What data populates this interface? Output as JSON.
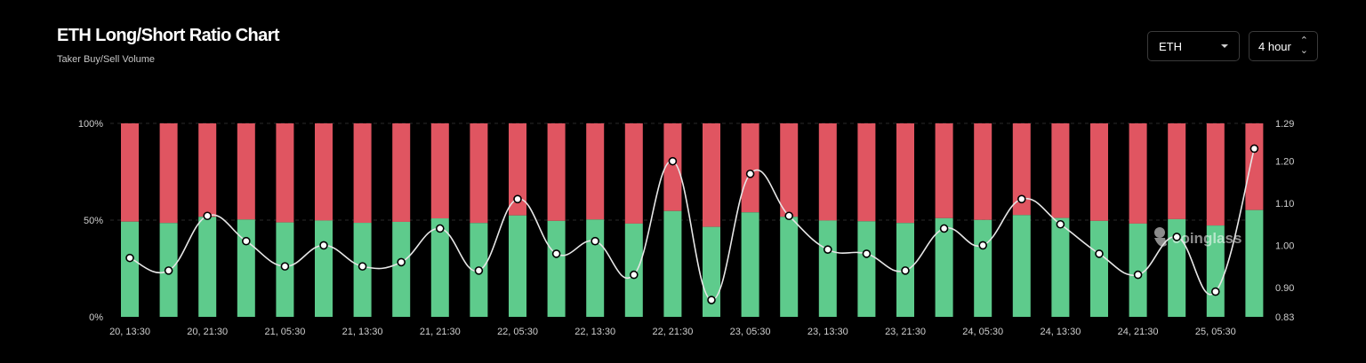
{
  "header": {
    "title": "ETH Long/Short Ratio Chart",
    "subtitle": "Taker Buy/Sell Volume"
  },
  "controls": {
    "coin_label": "ETH",
    "interval_label": "4 hour",
    "caret_icon": "chevron-down-icon",
    "updown_icon": "sort-updown-icon"
  },
  "watermark": "coinglass",
  "colors": {
    "long": "#5ecb8c",
    "short": "#e05561",
    "line": "#e6e6e6",
    "background": "#000000"
  },
  "chart_data": {
    "type": "bar",
    "stacked": true,
    "percent_axis": {
      "ticks": [
        "0%",
        "50%",
        "100%"
      ],
      "range": [
        0,
        100
      ]
    },
    "ratio_axis": {
      "ticks": [
        "0.83",
        "0.90",
        "1.00",
        "1.10",
        "1.20",
        "1.29"
      ],
      "range": [
        0.83,
        1.29
      ]
    },
    "x_tick_labels": [
      "20, 13:30",
      "20, 21:30",
      "21, 05:30",
      "21, 13:30",
      "21, 21:30",
      "22, 05:30",
      "22, 13:30",
      "22, 21:30",
      "23, 05:30",
      "23, 13:30",
      "23, 21:30",
      "24, 05:30",
      "24, 13:30",
      "24, 21:30",
      "25, 05:30"
    ],
    "series": [
      {
        "name": "Long",
        "values": [
          49.2,
          48.5,
          51.7,
          50.3,
          48.8,
          49.8,
          48.6,
          49.1,
          50.9,
          48.5,
          52.4,
          49.6,
          50.3,
          48.2,
          54.7,
          46.5,
          54.0,
          51.7,
          49.8,
          49.4,
          48.5,
          51.0,
          50.1,
          52.6,
          51.1,
          49.6,
          48.2,
          50.5,
          47.2,
          55.2
        ]
      },
      {
        "name": "Short",
        "values": [
          50.8,
          51.5,
          48.3,
          49.7,
          51.2,
          50.2,
          51.4,
          50.9,
          49.1,
          51.5,
          47.6,
          50.4,
          49.7,
          51.8,
          45.3,
          53.5,
          46.0,
          48.3,
          50.2,
          50.6,
          51.5,
          49.0,
          49.9,
          47.4,
          48.9,
          50.4,
          51.8,
          49.5,
          52.8,
          44.8
        ]
      },
      {
        "name": "Ratio",
        "values": [
          0.97,
          0.94,
          1.07,
          1.01,
          0.95,
          1.0,
          0.95,
          0.96,
          1.04,
          0.94,
          1.11,
          0.98,
          1.01,
          0.93,
          1.2,
          0.87,
          1.17,
          1.07,
          0.99,
          0.98,
          0.94,
          1.04,
          1.0,
          1.11,
          1.05,
          0.98,
          0.93,
          1.02,
          0.89,
          1.23
        ]
      }
    ]
  }
}
